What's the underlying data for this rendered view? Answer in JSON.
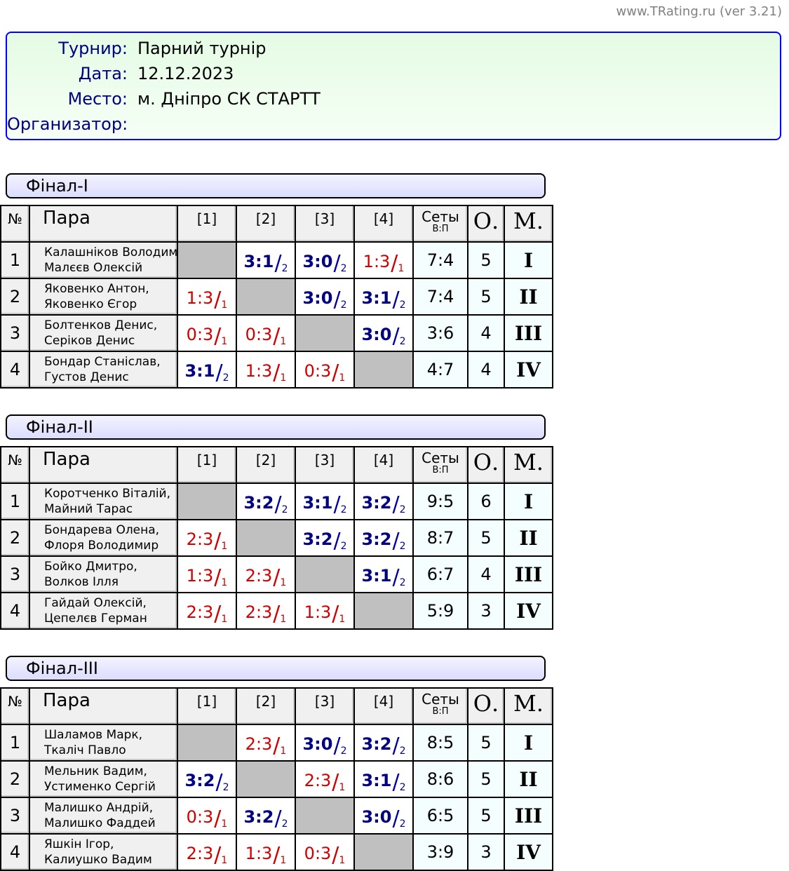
{
  "version": "www.TRating.ru (ver 3.21)",
  "info": [
    {
      "label": "Турнир:",
      "value": "Парний турнір"
    },
    {
      "label": "Дата:",
      "value": "12.12.2023"
    },
    {
      "label": "Место:",
      "value": "м. Дніпро СК СТАРТТ"
    },
    {
      "label": "Организатор:",
      "value": ""
    }
  ],
  "headers": {
    "num": "№",
    "pair": "Пара",
    "cols": [
      "[1]",
      "[2]",
      "[3]",
      "[4]"
    ],
    "sets": "Сеты",
    "sets_sub": "В:П",
    "points": "О.",
    "place": "М."
  },
  "colors": {
    "win": "#000080",
    "loss": "#d00000",
    "info_border": "#0000ff"
  },
  "sections": [
    {
      "title": "Фінал-I",
      "rows": [
        {
          "num": "1",
          "p1": "Калашніков Володимир,",
          "p2": "Малєєв Олексій",
          "cells": [
            null,
            {
              "s": "3:1",
              "p": "2",
              "w": true
            },
            {
              "s": "3:0",
              "p": "2",
              "w": true
            },
            {
              "s": "1:3",
              "p": "1",
              "w": false
            }
          ],
          "sets": "7:4",
          "points": "5",
          "place": "I"
        },
        {
          "num": "2",
          "p1": "Яковенко Антон,",
          "p2": "Яковенко Єгор",
          "cells": [
            {
              "s": "1:3",
              "p": "1",
              "w": false
            },
            null,
            {
              "s": "3:0",
              "p": "2",
              "w": true
            },
            {
              "s": "3:1",
              "p": "2",
              "w": true
            }
          ],
          "sets": "7:4",
          "points": "5",
          "place": "II"
        },
        {
          "num": "3",
          "p1": "Болтенков Денис,",
          "p2": "Серіков Денис",
          "cells": [
            {
              "s": "0:3",
              "p": "1",
              "w": false
            },
            {
              "s": "0:3",
              "p": "1",
              "w": false
            },
            null,
            {
              "s": "3:0",
              "p": "2",
              "w": true
            }
          ],
          "sets": "3:6",
          "points": "4",
          "place": "III"
        },
        {
          "num": "4",
          "p1": "Бондар Станіслав,",
          "p2": "Густов Денис",
          "cells": [
            {
              "s": "3:1",
              "p": "2",
              "w": true
            },
            {
              "s": "1:3",
              "p": "1",
              "w": false
            },
            {
              "s": "0:3",
              "p": "1",
              "w": false
            },
            null
          ],
          "sets": "4:7",
          "points": "4",
          "place": "IV"
        }
      ]
    },
    {
      "title": "Фінал-II",
      "rows": [
        {
          "num": "1",
          "p1": "Коротченко Віталій,",
          "p2": "Майний Тарас",
          "cells": [
            null,
            {
              "s": "3:2",
              "p": "2",
              "w": true
            },
            {
              "s": "3:1",
              "p": "2",
              "w": true
            },
            {
              "s": "3:2",
              "p": "2",
              "w": true
            }
          ],
          "sets": "9:5",
          "points": "6",
          "place": "I"
        },
        {
          "num": "2",
          "p1": "Бондарева Олена,",
          "p2": "Флоря Володимир",
          "cells": [
            {
              "s": "2:3",
              "p": "1",
              "w": false
            },
            null,
            {
              "s": "3:2",
              "p": "2",
              "w": true
            },
            {
              "s": "3:2",
              "p": "2",
              "w": true
            }
          ],
          "sets": "8:7",
          "points": "5",
          "place": "II"
        },
        {
          "num": "3",
          "p1": "Бойко Дмитро,",
          "p2": "Волков Ілля",
          "cells": [
            {
              "s": "1:3",
              "p": "1",
              "w": false
            },
            {
              "s": "2:3",
              "p": "1",
              "w": false
            },
            null,
            {
              "s": "3:1",
              "p": "2",
              "w": true
            }
          ],
          "sets": "6:7",
          "points": "4",
          "place": "III"
        },
        {
          "num": "4",
          "p1": "Гайдай Олексій,",
          "p2": "Цепелєв Герман",
          "cells": [
            {
              "s": "2:3",
              "p": "1",
              "w": false
            },
            {
              "s": "2:3",
              "p": "1",
              "w": false
            },
            {
              "s": "1:3",
              "p": "1",
              "w": false
            },
            null
          ],
          "sets": "5:9",
          "points": "3",
          "place": "IV"
        }
      ]
    },
    {
      "title": "Фінал-III",
      "rows": [
        {
          "num": "1",
          "p1": "Шаламов Марк,",
          "p2": "Ткаліч Павло",
          "cells": [
            null,
            {
              "s": "2:3",
              "p": "1",
              "w": false
            },
            {
              "s": "3:0",
              "p": "2",
              "w": true
            },
            {
              "s": "3:2",
              "p": "2",
              "w": true
            }
          ],
          "sets": "8:5",
          "points": "5",
          "place": "I"
        },
        {
          "num": "2",
          "p1": "Мельник Вадим,",
          "p2": "Устименко Сергій",
          "cells": [
            {
              "s": "3:2",
              "p": "2",
              "w": true
            },
            null,
            {
              "s": "2:3",
              "p": "1",
              "w": false
            },
            {
              "s": "3:1",
              "p": "2",
              "w": true
            }
          ],
          "sets": "8:6",
          "points": "5",
          "place": "II"
        },
        {
          "num": "3",
          "p1": "Малишко Андрій,",
          "p2": "Малишко Фаддей",
          "cells": [
            {
              "s": "0:3",
              "p": "1",
              "w": false
            },
            {
              "s": "3:2",
              "p": "2",
              "w": true
            },
            null,
            {
              "s": "3:0",
              "p": "2",
              "w": true
            }
          ],
          "sets": "6:5",
          "points": "5",
          "place": "III"
        },
        {
          "num": "4",
          "p1": "Яшкін Ігор,",
          "p2": "Калиушко Вадим",
          "cells": [
            {
              "s": "2:3",
              "p": "1",
              "w": false
            },
            {
              "s": "1:3",
              "p": "1",
              "w": false
            },
            {
              "s": "0:3",
              "p": "1",
              "w": false
            },
            null
          ],
          "sets": "3:9",
          "points": "3",
          "place": "IV"
        }
      ]
    }
  ]
}
